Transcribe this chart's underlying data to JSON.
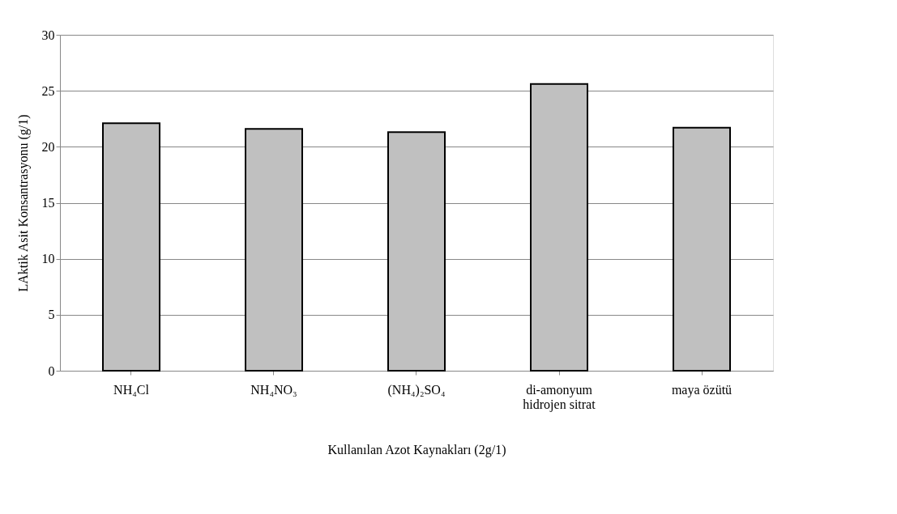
{
  "chart_data": {
    "type": "bar",
    "xlabel": "Kullanılan Azot Kaynakları (2g/1)",
    "ylabel": "LAktik Asit Konsantrasyonu (g/1)",
    "categories": [
      "NH₄Cl",
      "NH₄NO₃",
      "(NH₄)₂SO₄",
      "di-amonyum hidrojen sitrat",
      "maya özütü"
    ],
    "values": [
      22.1,
      21.6,
      21.3,
      25.6,
      21.7
    ],
    "color": "#c0c0c0",
    "ylim": [
      0,
      30
    ],
    "yticks": [
      0,
      5,
      10,
      15,
      20,
      25,
      30
    ],
    "grid": "y"
  }
}
